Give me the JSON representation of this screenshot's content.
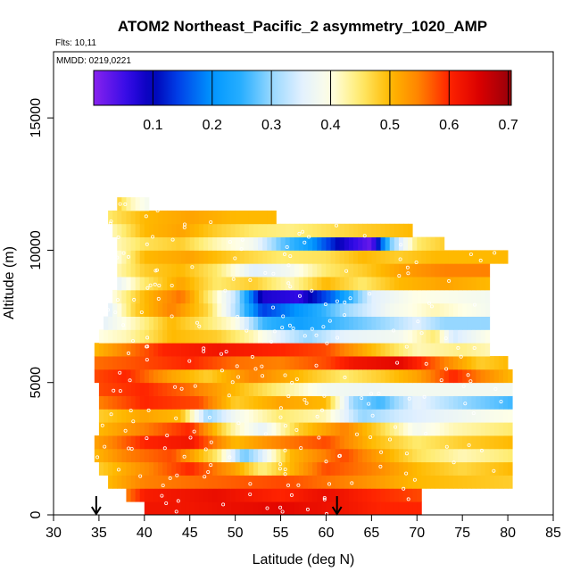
{
  "chart_data": {
    "type": "heatmap",
    "title": "ATOM2 Northeast_Pacific_2 asymmetry_1020_AMP",
    "flights_note": "Flts: 10,11",
    "dates_note": "MMDD: 0219,0221",
    "xlabel": "Latitude (deg N)",
    "ylabel": "Altitude (m)",
    "xlim": [
      30,
      85
    ],
    "ylim": [
      0,
      17500
    ],
    "x_ticks": [
      30,
      35,
      40,
      45,
      50,
      55,
      60,
      65,
      70,
      75,
      80,
      85
    ],
    "y_ticks": [
      0,
      5000,
      10000,
      15000
    ],
    "colorbar": {
      "range": [
        0,
        0.705
      ],
      "ticks": [
        0.1,
        0.2,
        0.3,
        0.4,
        0.5,
        0.6,
        0.7
      ],
      "placement": "top inside plot"
    },
    "markers": {
      "type": "arrow-down",
      "latitudes": [
        34.7,
        61.2
      ]
    },
    "bin_height_m": 500,
    "bands": [
      {
        "alt": 250,
        "lat_min": 40,
        "lat_max": 70.5,
        "segments": [
          [
            40,
            0.62
          ],
          [
            45,
            0.62
          ],
          [
            55,
            0.64
          ],
          [
            62,
            0.62
          ],
          [
            66,
            0.6
          ],
          [
            70.5,
            0.6
          ]
        ]
      },
      {
        "alt": 750,
        "lat_min": 38,
        "lat_max": 70.5,
        "segments": [
          [
            38,
            0.55
          ],
          [
            40,
            0.61
          ],
          [
            48,
            0.63
          ],
          [
            55,
            0.6
          ],
          [
            60,
            0.63
          ],
          [
            65,
            0.6
          ],
          [
            70.5,
            0.58
          ]
        ]
      },
      {
        "alt": 1250,
        "lat_min": 36,
        "lat_max": 80.5,
        "segments": [
          [
            36,
            0.5
          ],
          [
            40,
            0.55
          ],
          [
            45,
            0.56
          ],
          [
            55,
            0.58
          ],
          [
            62,
            0.55
          ],
          [
            70,
            0.5
          ],
          [
            80.5,
            0.48
          ]
        ]
      },
      {
        "alt": 1750,
        "lat_min": 35,
        "lat_max": 80.5,
        "segments": [
          [
            35,
            0.48
          ],
          [
            40,
            0.54
          ],
          [
            45,
            0.6
          ],
          [
            50,
            0.52
          ],
          [
            53,
            0.44
          ],
          [
            56,
            0.5
          ],
          [
            60,
            0.58
          ],
          [
            65,
            0.55
          ],
          [
            70,
            0.5
          ],
          [
            75,
            0.47
          ],
          [
            80.5,
            0.5
          ]
        ]
      },
      {
        "alt": 2250,
        "lat_min": 34.5,
        "lat_max": 80.5,
        "segments": [
          [
            34.5,
            0.5
          ],
          [
            38,
            0.55
          ],
          [
            43,
            0.58
          ],
          [
            48,
            0.45
          ],
          [
            51,
            0.28
          ],
          [
            53,
            0.35
          ],
          [
            56,
            0.5
          ],
          [
            62,
            0.58
          ],
          [
            66,
            0.52
          ],
          [
            70,
            0.46
          ],
          [
            75,
            0.42
          ],
          [
            80.5,
            0.45
          ]
        ]
      },
      {
        "alt": 2750,
        "lat_min": 34.5,
        "lat_max": 80.5,
        "segments": [
          [
            34.5,
            0.52
          ],
          [
            40,
            0.6
          ],
          [
            45,
            0.62
          ],
          [
            50,
            0.5
          ],
          [
            55,
            0.55
          ],
          [
            60,
            0.58
          ],
          [
            65,
            0.5
          ],
          [
            70,
            0.45
          ],
          [
            75,
            0.48
          ],
          [
            80.5,
            0.5
          ]
        ]
      },
      {
        "alt": 3250,
        "lat_min": 35,
        "lat_max": 80.5,
        "segments": [
          [
            35,
            0.5
          ],
          [
            40,
            0.55
          ],
          [
            45,
            0.6
          ],
          [
            50,
            0.42
          ],
          [
            53,
            0.36
          ],
          [
            57,
            0.48
          ],
          [
            62,
            0.55
          ],
          [
            66,
            0.47
          ],
          [
            70,
            0.38
          ],
          [
            74,
            0.42
          ],
          [
            80.5,
            0.45
          ]
        ]
      },
      {
        "alt": 3750,
        "lat_min": 35,
        "lat_max": 80.5,
        "segments": [
          [
            35,
            0.48
          ],
          [
            40,
            0.52
          ],
          [
            44,
            0.5
          ],
          [
            47,
            0.3
          ],
          [
            50,
            0.38
          ],
          [
            55,
            0.45
          ],
          [
            60,
            0.42
          ],
          [
            64,
            0.3
          ],
          [
            68,
            0.34
          ],
          [
            72,
            0.36
          ],
          [
            80.5,
            0.4
          ]
        ]
      },
      {
        "alt": 4250,
        "lat_min": 35,
        "lat_max": 80.5,
        "segments": [
          [
            35,
            0.55
          ],
          [
            40,
            0.6
          ],
          [
            46,
            0.58
          ],
          [
            50,
            0.48
          ],
          [
            55,
            0.52
          ],
          [
            60,
            0.5
          ],
          [
            63,
            0.3
          ],
          [
            66,
            0.26
          ],
          [
            70,
            0.36
          ],
          [
            75,
            0.3
          ],
          [
            80.5,
            0.26
          ]
        ]
      },
      {
        "alt": 4750,
        "lat_min": 35,
        "lat_max": 80.5,
        "segments": [
          [
            35,
            0.58
          ],
          [
            40,
            0.6
          ],
          [
            45,
            0.56
          ],
          [
            50,
            0.5
          ],
          [
            55,
            0.44
          ],
          [
            60,
            0.38
          ],
          [
            65,
            0.37
          ],
          [
            70,
            0.38
          ],
          [
            75,
            0.38
          ],
          [
            80.5,
            0.38
          ]
        ]
      },
      {
        "alt": 5250,
        "lat_min": 34.5,
        "lat_max": 80.5,
        "segments": [
          [
            34.5,
            0.58
          ],
          [
            38,
            0.6
          ],
          [
            43,
            0.52
          ],
          [
            47,
            0.48
          ],
          [
            52,
            0.55
          ],
          [
            57,
            0.5
          ],
          [
            62,
            0.45
          ],
          [
            66,
            0.48
          ],
          [
            70,
            0.52
          ],
          [
            74,
            0.6
          ],
          [
            77,
            0.55
          ],
          [
            80.5,
            0.5
          ]
        ]
      },
      {
        "alt": 5750,
        "lat_min": 34.5,
        "lat_max": 80,
        "segments": [
          [
            34.5,
            0.56
          ],
          [
            40,
            0.58
          ],
          [
            45,
            0.6
          ],
          [
            50,
            0.56
          ],
          [
            55,
            0.55
          ],
          [
            60,
            0.58
          ],
          [
            63,
            0.62
          ],
          [
            68,
            0.64
          ],
          [
            73,
            0.55
          ],
          [
            77,
            0.48
          ],
          [
            80,
            0.5
          ]
        ]
      },
      {
        "alt": 6250,
        "lat_min": 34.5,
        "lat_max": 78,
        "segments": [
          [
            34.5,
            0.5
          ],
          [
            38,
            0.55
          ],
          [
            42,
            0.6
          ],
          [
            48,
            0.62
          ],
          [
            55,
            0.6
          ],
          [
            60,
            0.58
          ],
          [
            65,
            0.5
          ],
          [
            70,
            0.42
          ],
          [
            75,
            0.44
          ],
          [
            78,
            0.42
          ]
        ]
      },
      {
        "alt": 6750,
        "lat_min": 35,
        "lat_max": 78,
        "segments": [
          [
            35,
            0.4
          ],
          [
            38,
            0.42
          ],
          [
            43,
            0.5
          ],
          [
            48,
            0.48
          ],
          [
            52,
            0.42
          ],
          [
            55,
            0.35
          ],
          [
            58,
            0.3
          ],
          [
            62,
            0.36
          ],
          [
            68,
            0.38
          ],
          [
            72,
            0.45
          ],
          [
            74,
            0.34
          ],
          [
            78,
            0.4
          ]
        ]
      },
      {
        "alt": 7250,
        "lat_min": 35.5,
        "lat_max": 78,
        "segments": [
          [
            35.5,
            0.36
          ],
          [
            39,
            0.42
          ],
          [
            43,
            0.5
          ],
          [
            47,
            0.45
          ],
          [
            50,
            0.4
          ],
          [
            53,
            0.26
          ],
          [
            57,
            0.22
          ],
          [
            61,
            0.26
          ],
          [
            66,
            0.3
          ],
          [
            70,
            0.35
          ],
          [
            73,
            0.3
          ],
          [
            78,
            0.3
          ]
        ]
      },
      {
        "alt": 7750,
        "lat_min": 36,
        "lat_max": 78,
        "segments": [
          [
            36,
            0.35
          ],
          [
            39,
            0.48
          ],
          [
            43,
            0.55
          ],
          [
            47,
            0.47
          ],
          [
            50,
            0.32
          ],
          [
            53,
            0.14
          ],
          [
            58,
            0.22
          ],
          [
            62,
            0.3
          ],
          [
            67,
            0.38
          ],
          [
            72,
            0.42
          ],
          [
            78,
            0.38
          ]
        ]
      },
      {
        "alt": 8250,
        "lat_min": 36.5,
        "lat_max": 78,
        "segments": [
          [
            36.5,
            0.4
          ],
          [
            40,
            0.5
          ],
          [
            44,
            0.56
          ],
          [
            47,
            0.45
          ],
          [
            50,
            0.33
          ],
          [
            53,
            0.08
          ],
          [
            57,
            0.06
          ],
          [
            61,
            0.18
          ],
          [
            65,
            0.35
          ],
          [
            70,
            0.4
          ],
          [
            78,
            0.38
          ]
        ]
      },
      {
        "alt": 8750,
        "lat_min": 37,
        "lat_max": 78,
        "segments": [
          [
            37,
            0.36
          ],
          [
            40,
            0.45
          ],
          [
            44,
            0.52
          ],
          [
            48,
            0.45
          ],
          [
            52,
            0.48
          ],
          [
            56,
            0.42
          ],
          [
            60,
            0.5
          ],
          [
            64,
            0.45
          ],
          [
            68,
            0.5
          ],
          [
            73,
            0.52
          ],
          [
            78,
            0.5
          ]
        ]
      },
      {
        "alt": 9250,
        "lat_min": 37,
        "lat_max": 78,
        "segments": [
          [
            37,
            0.42
          ],
          [
            40,
            0.48
          ],
          [
            44,
            0.5
          ],
          [
            48,
            0.45
          ],
          [
            52,
            0.35
          ],
          [
            56,
            0.38
          ],
          [
            60,
            0.45
          ],
          [
            64,
            0.48
          ],
          [
            68,
            0.52
          ],
          [
            73,
            0.55
          ],
          [
            78,
            0.55
          ]
        ]
      },
      {
        "alt": 9750,
        "lat_min": 37,
        "lat_max": 80,
        "segments": [
          [
            37,
            0.4
          ],
          [
            40,
            0.5
          ],
          [
            45,
            0.52
          ],
          [
            50,
            0.48
          ],
          [
            55,
            0.45
          ],
          [
            60,
            0.46
          ],
          [
            64,
            0.5
          ],
          [
            68,
            0.48
          ],
          [
            72,
            0.5
          ],
          [
            76,
            0.5
          ],
          [
            80,
            0.5
          ]
        ]
      },
      {
        "alt": 10250,
        "lat_min": 37,
        "lat_max": 73,
        "segments": [
          [
            37,
            0.42
          ],
          [
            40,
            0.46
          ],
          [
            44,
            0.48
          ],
          [
            48,
            0.42
          ],
          [
            52,
            0.38
          ],
          [
            55,
            0.28
          ],
          [
            58,
            0.22
          ],
          [
            62,
            0.08
          ],
          [
            65,
            0.02
          ],
          [
            67,
            0.28
          ],
          [
            70,
            0.45
          ],
          [
            73,
            0.48
          ]
        ]
      },
      {
        "alt": 10750,
        "lat_min": 36.5,
        "lat_max": 69.5,
        "segments": [
          [
            36.5,
            0.42
          ],
          [
            40,
            0.5
          ],
          [
            44,
            0.52
          ],
          [
            48,
            0.48
          ],
          [
            52,
            0.45
          ],
          [
            56,
            0.44
          ],
          [
            60,
            0.46
          ],
          [
            64,
            0.48
          ],
          [
            69.5,
            0.5
          ]
        ]
      },
      {
        "alt": 11250,
        "lat_min": 36,
        "lat_max": 54.5,
        "segments": [
          [
            36,
            0.45
          ],
          [
            40,
            0.5
          ],
          [
            45,
            0.52
          ],
          [
            50,
            0.5
          ],
          [
            54.5,
            0.5
          ]
        ]
      },
      {
        "alt": 11750,
        "lat_min": 37,
        "lat_max": 40.5,
        "segments": [
          [
            37,
            0.48
          ],
          [
            38.5,
            0.42
          ],
          [
            40.5,
            0.38
          ]
        ]
      }
    ]
  }
}
